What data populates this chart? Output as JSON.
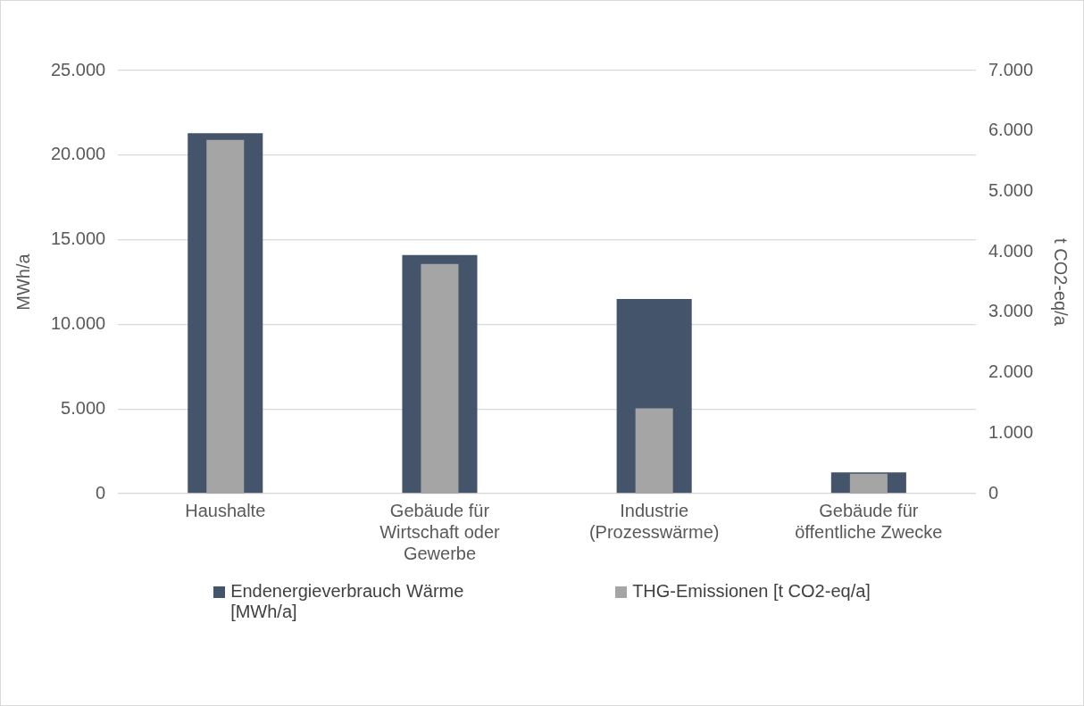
{
  "chart_data": {
    "type": "bar",
    "categories": [
      "Haushalte",
      "Gebäude für Wirtschaft oder Gewerbe",
      "Industrie (Prozesswärme)",
      "Gebäude für öffentliche Zwecke"
    ],
    "series": [
      {
        "name": "Endenergieverbrauch Wärme [MWh/a]",
        "color": "#44546a",
        "values": [
          21300,
          14100,
          11500,
          1250
        ]
      },
      {
        "name": "THG-Emissionen [t CO2-eq/a]",
        "color": "#a5a5a5",
        "axis": "y2",
        "values": [
          5850,
          3800,
          1410,
          330
        ]
      }
    ],
    "ylabel": "MWh/a",
    "y2label": "t CO2-eq/a",
    "ylim": [
      0,
      25000
    ],
    "yticks": [
      {
        "value": 0,
        "label": "0"
      },
      {
        "value": 5000,
        "label": "5.000"
      },
      {
        "value": 10000,
        "label": "10.000"
      },
      {
        "value": 15000,
        "label": "15.000"
      },
      {
        "value": 20000,
        "label": "20.000"
      },
      {
        "value": 25000,
        "label": "25.000"
      }
    ],
    "y2lim": [
      0,
      7000
    ],
    "y2ticks": [
      {
        "value": 0,
        "label": "0"
      },
      {
        "value": 1000,
        "label": "1.000"
      },
      {
        "value": 2000,
        "label": "2.000"
      },
      {
        "value": 3000,
        "label": "3.000"
      },
      {
        "value": 4000,
        "label": "4.000"
      },
      {
        "value": 5000,
        "label": "5.000"
      },
      {
        "value": 6000,
        "label": "6.000"
      },
      {
        "value": 7000,
        "label": "7.000"
      }
    ],
    "grid": "y",
    "legend": "bottom"
  }
}
